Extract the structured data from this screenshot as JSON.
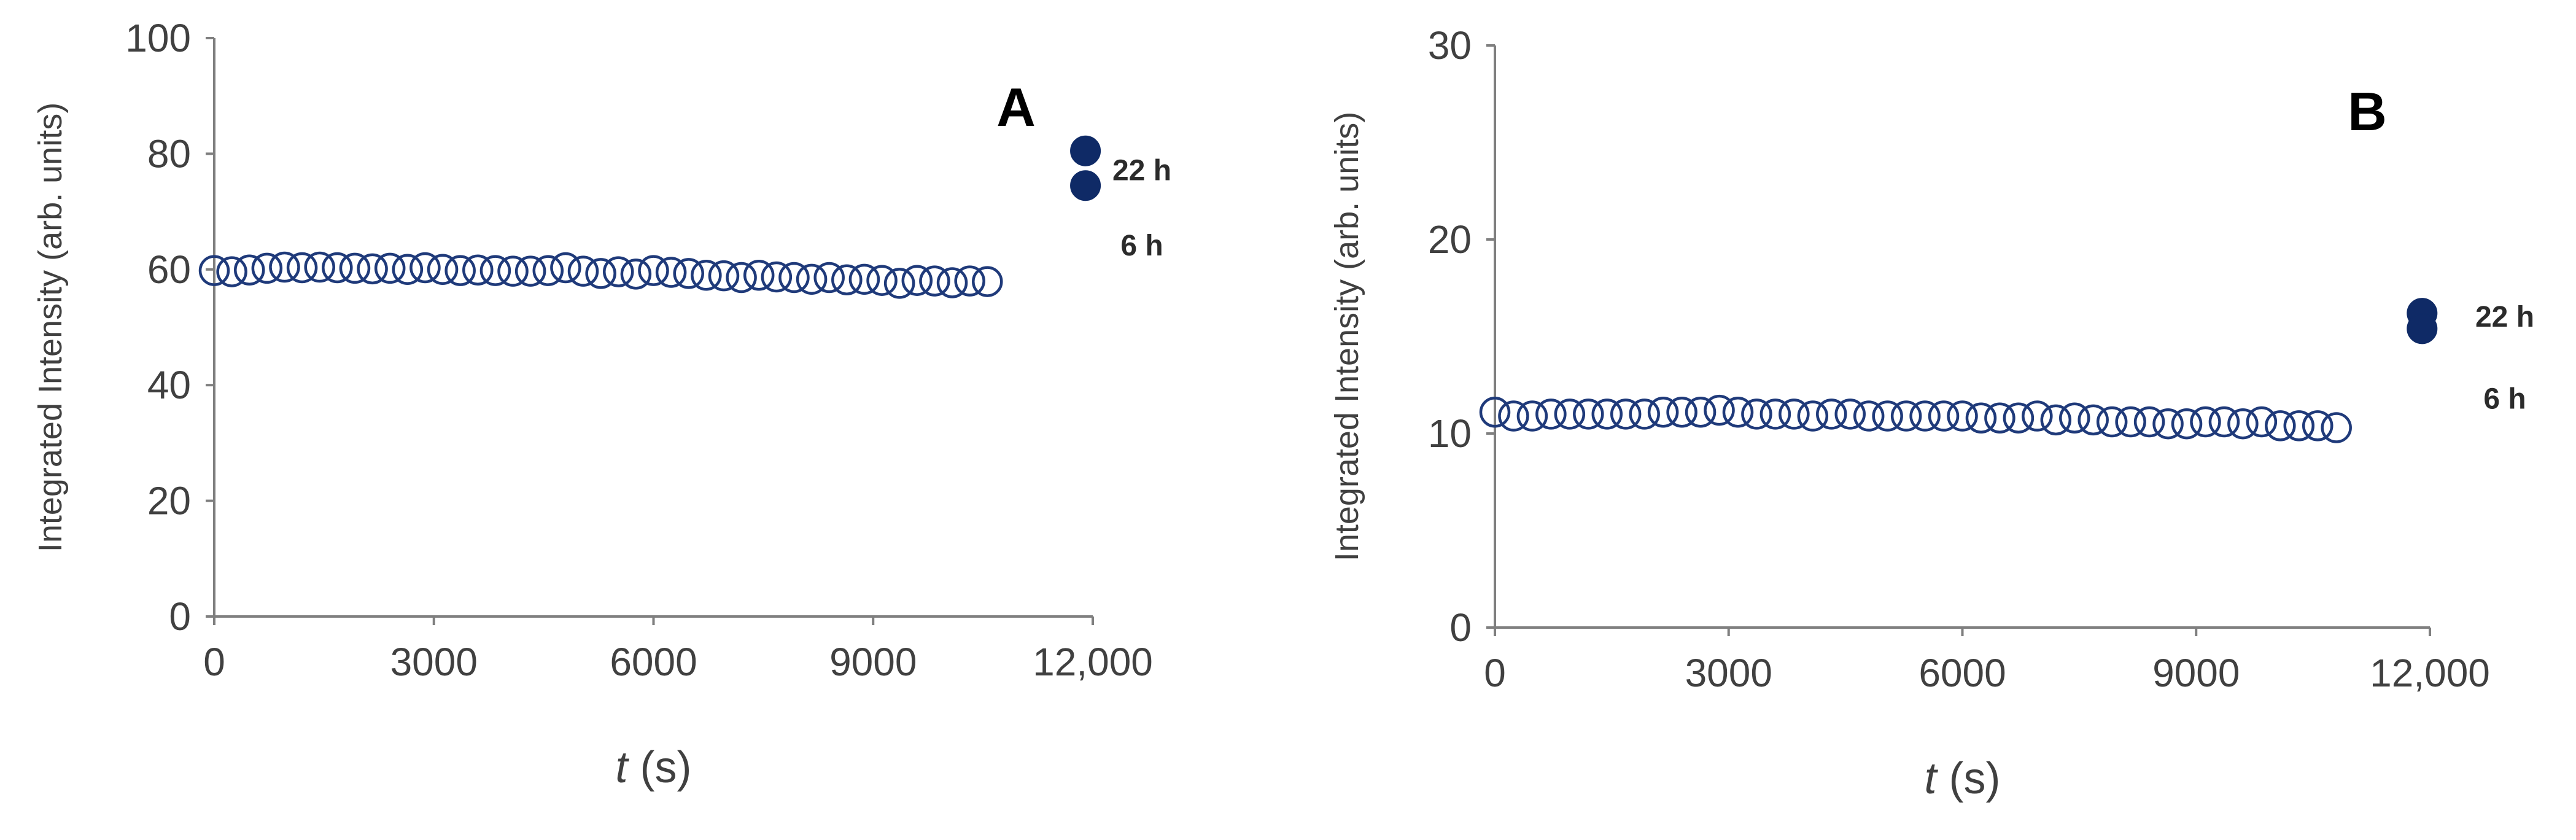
{
  "chart_data": [
    {
      "type": "scatter",
      "panel_label": "A",
      "xlabel_var": "t",
      "xlabel_unit": " (s)",
      "ylabel": "Integrated Intensity (arb. units)",
      "xlim": [
        0,
        12000
      ],
      "ylim": [
        0,
        100
      ],
      "x_ticks": [
        0,
        3000,
        6000,
        9000,
        12000
      ],
      "x_tick_labels": [
        "0",
        "3000",
        "6000",
        "9000",
        "12,000"
      ],
      "y_ticks": [
        0,
        20,
        40,
        60,
        80,
        100
      ],
      "y_tick_labels": [
        "0",
        "20",
        "40",
        "60",
        "80",
        "100"
      ],
      "series": [
        {
          "marker": "open-circle",
          "color": "#1f3a7a",
          "x": [
            0,
            240,
            480,
            720,
            960,
            1200,
            1440,
            1680,
            1920,
            2160,
            2400,
            2640,
            2880,
            3120,
            3360,
            3600,
            3840,
            4080,
            4320,
            4560,
            4800,
            5040,
            5280,
            5520,
            5760,
            6000,
            6240,
            6480,
            6720,
            6960,
            7200,
            7440,
            7680,
            7920,
            8160,
            8400,
            8640,
            8880,
            9120,
            9360,
            9600,
            9840,
            10080,
            10320,
            10560
          ],
          "y": [
            59.8,
            59.6,
            59.9,
            60.2,
            60.4,
            60.3,
            60.4,
            60.3,
            60.2,
            60.1,
            60.2,
            60.0,
            60.3,
            60.0,
            59.8,
            59.9,
            59.8,
            59.7,
            59.7,
            59.8,
            60.3,
            59.7,
            59.3,
            59.6,
            59.2,
            59.8,
            59.5,
            59.3,
            59.0,
            58.9,
            58.6,
            59.0,
            58.7,
            58.6,
            58.3,
            58.6,
            58.2,
            58.3,
            58.1,
            57.6,
            58.1,
            58.0,
            57.7,
            58.0,
            57.9
          ]
        },
        {
          "marker": "filled-circle",
          "color": "#0f2a66",
          "x": [
            11900,
            11900
          ],
          "y": [
            80.5,
            74.5
          ],
          "labels": [
            "22 h",
            "6 h"
          ]
        }
      ]
    },
    {
      "type": "scatter",
      "panel_label": "B",
      "xlabel_var": "t",
      "xlabel_unit": " (s)",
      "ylabel": "Integrated Intensity (arb. units)",
      "xlim": [
        0,
        12000
      ],
      "ylim": [
        0,
        30
      ],
      "x_ticks": [
        0,
        3000,
        6000,
        9000,
        12000
      ],
      "x_tick_labels": [
        "0",
        "3000",
        "6000",
        "9000",
        "12,000"
      ],
      "y_ticks": [
        0,
        10,
        20,
        30
      ],
      "y_tick_labels": [
        "0",
        "10",
        "20",
        "30"
      ],
      "series": [
        {
          "marker": "open-circle",
          "color": "#1f3a7a",
          "x": [
            0,
            240,
            480,
            720,
            960,
            1200,
            1440,
            1680,
            1920,
            2160,
            2400,
            2640,
            2880,
            3120,
            3360,
            3600,
            3840,
            4080,
            4320,
            4560,
            4800,
            5040,
            5280,
            5520,
            5760,
            6000,
            6240,
            6480,
            6720,
            6960,
            7200,
            7440,
            7680,
            7920,
            8160,
            8400,
            8640,
            8880,
            9120,
            9360,
            9600,
            9840,
            10080,
            10320,
            10560,
            10800
          ],
          "y": [
            11.1,
            10.9,
            10.9,
            11.0,
            11.0,
            11.0,
            11.0,
            11.0,
            11.0,
            11.1,
            11.1,
            11.1,
            11.2,
            11.1,
            11.0,
            11.0,
            11.0,
            10.9,
            11.0,
            11.0,
            10.9,
            10.9,
            10.9,
            10.9,
            10.9,
            10.9,
            10.8,
            10.8,
            10.8,
            10.9,
            10.7,
            10.8,
            10.7,
            10.6,
            10.6,
            10.6,
            10.5,
            10.5,
            10.6,
            10.6,
            10.5,
            10.6,
            10.4,
            10.4,
            10.4,
            10.3
          ]
        },
        {
          "marker": "filled-circle",
          "color": "#0f2a66",
          "x": [
            11900,
            11900
          ],
          "y": [
            16.2,
            15.4
          ],
          "labels": [
            "22 h",
            "6 h"
          ]
        }
      ]
    }
  ]
}
